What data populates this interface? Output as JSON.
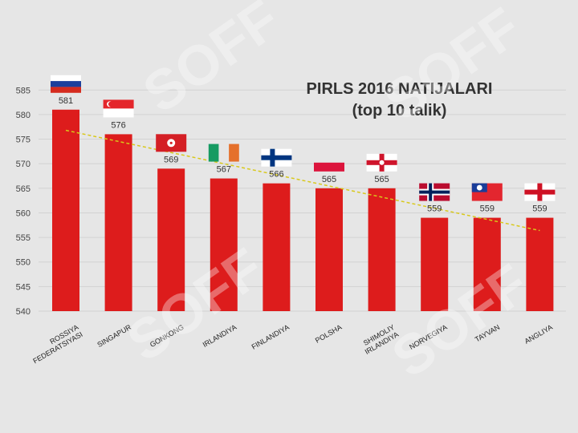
{
  "chart_data": {
    "type": "bar",
    "title": "PIRLS 2016 NATIJALARI",
    "subtitle": "(top 10 talik)",
    "categories": [
      "ROSSIYA FEDERATSIYASI",
      "SINGAPUR",
      "GONKONG",
      "IRLANDIYA",
      "FINLANDIYA",
      "POLSHA",
      "SHIMOLIY IRLANDIYA",
      "NORVEGIYA",
      "TAYVAN",
      "ANGLIYA"
    ],
    "category_lines": [
      [
        "ROSSIYA",
        "FEDERATSIYASI"
      ],
      [
        "SINGAPUR"
      ],
      [
        "GONKONG"
      ],
      [
        "IRLANDIYA"
      ],
      [
        "FINLANDIYA"
      ],
      [
        "POLSHA"
      ],
      [
        "SHIMOLIY",
        "IRLANDIYA"
      ],
      [
        "NORVEGIYA"
      ],
      [
        "TAYVAN"
      ],
      [
        "ANGLIYA"
      ]
    ],
    "values": [
      581,
      576,
      569,
      567,
      566,
      565,
      565,
      559,
      559,
      559
    ],
    "data_labels": [
      "581",
      "576",
      "569",
      "567",
      "566",
      "565",
      "565",
      "559",
      "559",
      "559"
    ],
    "yticks": [
      "540",
      "545",
      "550",
      "555",
      "560",
      "565",
      "570",
      "575",
      "580",
      "585"
    ],
    "ylim": [
      540,
      587
    ],
    "trendline": true,
    "grid": true,
    "colors": {
      "bar": "#dd1c1c",
      "trend": "#d8c81a",
      "grid": "#d2d2d2",
      "text": "#333333"
    },
    "flags": [
      "russia-flag",
      "singapore-flag",
      "hong-kong-flag",
      "ireland-flag",
      "finland-flag",
      "poland-flag",
      "northern-ireland-flag",
      "norway-flag",
      "taiwan-flag",
      "england-flag"
    ]
  },
  "watermark": "SOFF"
}
